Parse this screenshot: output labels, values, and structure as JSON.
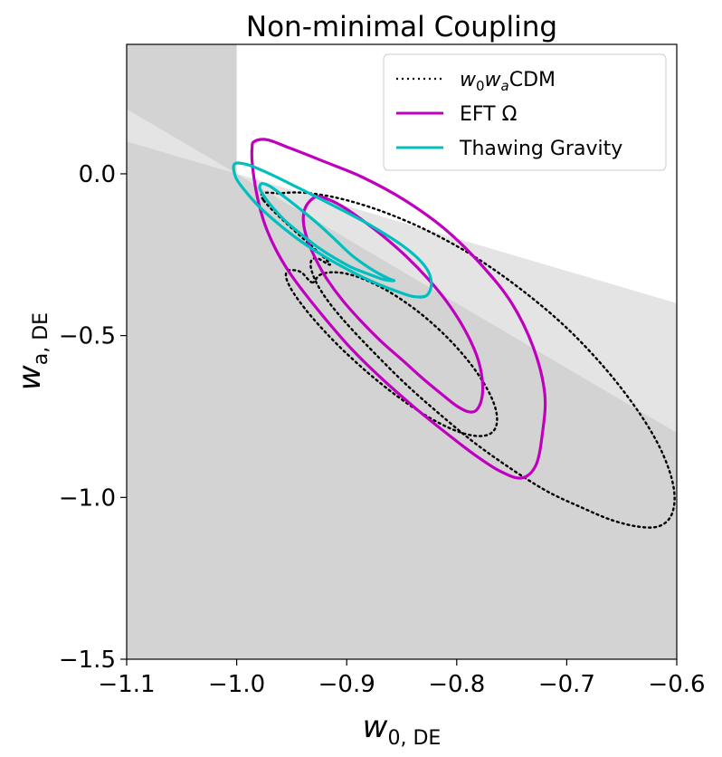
{
  "chart_data": {
    "type": "contour",
    "title": "Non-minimal Coupling",
    "xlabel": {
      "base": "w",
      "sub": "0, DE"
    },
    "ylabel": {
      "base": "w",
      "sub": "a, DE"
    },
    "xlim": [
      -1.1,
      -0.6
    ],
    "ylim": [
      -1.5,
      0.4
    ],
    "xticks": [
      -1.1,
      -1.0,
      -0.9,
      -0.8,
      -0.7,
      -0.6
    ],
    "xtick_labels": [
      "−1.1",
      "−1.0",
      "−0.9",
      "−0.8",
      "−0.7",
      "−0.6"
    ],
    "yticks": [
      0.0,
      -0.5,
      -1.0,
      -1.5
    ],
    "ytick_labels": [
      "0.0",
      "−0.5",
      "−1.0",
      "−1.5"
    ],
    "shaded_regions": [
      {
        "name": "excluded-strip",
        "polygon": [
          [
            -1.1,
            0.4
          ],
          [
            -1.0,
            0.4
          ],
          [
            -1.0,
            -1.5
          ],
          [
            -1.1,
            -1.5
          ]
        ],
        "color": "#d3d3d3"
      },
      {
        "name": "light-wedge",
        "polygon": [
          [
            -1.0,
            0.0
          ],
          [
            -1.1,
            0.2
          ],
          [
            -1.1,
            0.1
          ],
          [
            -1.0,
            0.0
          ],
          [
            -0.6,
            -0.8
          ],
          [
            -0.6,
            -0.4
          ]
        ],
        "color": "#e4e4e4"
      },
      {
        "name": "dark-region",
        "polygon": [
          [
            -1.0,
            0.0
          ],
          [
            -0.6,
            -0.8
          ],
          [
            -0.6,
            -1.5
          ],
          [
            -1.0,
            -1.5
          ]
        ],
        "color": "#d3d3d3"
      }
    ],
    "series": [
      {
        "name": "w0waCDM",
        "color": "#000000",
        "style": "dotted",
        "contours": [
          {
            "level": "68%",
            "points": [
              [
                -0.9315,
                -0.3357
              ],
              [
                -0.9249,
                -0.3136
              ],
              [
                -0.9144,
                -0.3043
              ],
              [
                -0.9006,
                -0.3085
              ],
              [
                -0.8842,
                -0.326
              ],
              [
                -0.866,
                -0.3557
              ],
              [
                -0.847,
                -0.396
              ],
              [
                -0.8282,
                -0.4448
              ],
              [
                -0.8105,
                -0.4994
              ],
              [
                -0.7947,
                -0.5569
              ],
              [
                -0.7816,
                -0.6143
              ],
              [
                -0.7717,
                -0.6686
              ],
              [
                -0.7655,
                -0.717
              ],
              [
                -0.7633,
                -0.757
              ],
              [
                -0.765,
                -0.7868
              ],
              [
                -0.7706,
                -0.8049
              ],
              [
                -0.7799,
                -0.8105
              ],
              [
                -0.7924,
                -0.8034
              ],
              [
                -0.8077,
                -0.784
              ],
              [
                -0.825,
                -0.7531
              ],
              [
                -0.8438,
                -0.7122
              ],
              [
                -0.8633,
                -0.6633
              ],
              [
                -0.8827,
                -0.609
              ],
              [
                -0.9012,
                -0.5517
              ],
              [
                -0.918,
                -0.4943
              ],
              [
                -0.9324,
                -0.4398
              ],
              [
                -0.9437,
                -0.3911
              ],
              [
                -0.9513,
                -0.351
              ],
              [
                -0.955,
                -0.3211
              ],
              [
                -0.9545,
                -0.303
              ],
              [
                -0.9499,
                -0.2974
              ],
              [
                -0.9412,
                -0.3045
              ]
            ]
          },
          {
            "level": "95%",
            "points": [
              [
                -0.976,
                -0.08
              ],
              [
                -0.9587,
                -0.06
              ],
              [
                -0.9336,
                -0.06
              ],
              [
                -0.9019,
                -0.08
              ],
              [
                -0.8647,
                -0.12
              ],
              [
                -0.824,
                -0.18
              ],
              [
                -0.782,
                -0.26
              ],
              [
                -0.7405,
                -0.36
              ],
              [
                -0.702,
                -0.47
              ],
              [
                -0.668,
                -0.59
              ],
              [
                -0.64,
                -0.71
              ],
              [
                -0.6193,
                -0.82
              ],
              [
                -0.6065,
                -0.92
              ],
              [
                -0.602,
                -1.0
              ],
              [
                -0.6057,
                -1.06
              ],
              [
                -0.6171,
                -1.09
              ],
              [
                -0.6353,
                -1.09
              ],
              [
                -0.6591,
                -1.07
              ],
              [
                -0.6873,
                -1.03
              ],
              [
                -0.7184,
                -0.98
              ],
              [
                -0.7512,
                -0.91
              ],
              [
                -0.7843,
                -0.83
              ],
              [
                -0.8164,
                -0.74
              ],
              [
                -0.8463,
                -0.65
              ],
              [
                -0.873,
                -0.56
              ],
              [
                -0.8955,
                -0.48
              ],
              [
                -0.9132,
                -0.41
              ],
              [
                -0.9254,
                -0.35
              ],
              [
                -0.9318,
                -0.3
              ],
              [
                -0.9324,
                -0.27
              ],
              [
                -0.9274,
                -0.26
              ],
              [
                -0.9174,
                -0.27
              ]
            ]
          }
        ]
      },
      {
        "name": "EFT Ω",
        "color": "#bf00bf",
        "style": "solid",
        "contours": [
          {
            "level": "68%",
            "points": [
              [
                -0.927,
                -0.07
              ],
              [
                -0.916,
                -0.08
              ],
              [
                -0.902,
                -0.105
              ],
              [
                -0.885,
                -0.145
              ],
              [
                -0.866,
                -0.195
              ],
              [
                -0.846,
                -0.255
              ],
              [
                -0.826,
                -0.325
              ],
              [
                -0.808,
                -0.4
              ],
              [
                -0.793,
                -0.48
              ],
              [
                -0.782,
                -0.56
              ],
              [
                -0.777,
                -0.63
              ],
              [
                -0.777,
                -0.69
              ],
              [
                -0.782,
                -0.73
              ],
              [
                -0.79,
                -0.735
              ],
              [
                -0.801,
                -0.715
              ],
              [
                -0.814,
                -0.68
              ],
              [
                -0.83,
                -0.635
              ],
              [
                -0.848,
                -0.58
              ],
              [
                -0.868,
                -0.52
              ],
              [
                -0.887,
                -0.455
              ],
              [
                -0.904,
                -0.39
              ],
              [
                -0.918,
                -0.325
              ],
              [
                -0.928,
                -0.265
              ],
              [
                -0.935,
                -0.21
              ],
              [
                -0.939,
                -0.16
              ],
              [
                -0.939,
                -0.12
              ],
              [
                -0.935,
                -0.09
              ]
            ]
          },
          {
            "level": "95%",
            "points": [
              [
                -0.984,
                0.1
              ],
              [
                -0.972,
                0.105
              ],
              [
                -0.952,
                0.08
              ],
              [
                -0.922,
                0.04
              ],
              [
                -0.886,
                -0.01
              ],
              [
                -0.848,
                -0.08
              ],
              [
                -0.811,
                -0.17
              ],
              [
                -0.778,
                -0.28
              ],
              [
                -0.75,
                -0.4
              ],
              [
                -0.73,
                -0.54
              ],
              [
                -0.72,
                -0.68
              ],
              [
                -0.722,
                -0.8
              ],
              [
                -0.728,
                -0.9
              ],
              [
                -0.741,
                -0.94
              ],
              [
                -0.76,
                -0.92
              ],
              [
                -0.783,
                -0.87
              ],
              [
                -0.81,
                -0.8
              ],
              [
                -0.839,
                -0.72
              ],
              [
                -0.869,
                -0.63
              ],
              [
                -0.896,
                -0.54
              ],
              [
                -0.919,
                -0.45
              ],
              [
                -0.938,
                -0.37
              ],
              [
                -0.953,
                -0.3
              ],
              [
                -0.965,
                -0.23
              ],
              [
                -0.974,
                -0.16
              ],
              [
                -0.98,
                -0.09
              ],
              [
                -0.984,
                -0.02
              ],
              [
                -0.986,
                0.04
              ],
              [
                -0.986,
                0.08
              ]
            ]
          }
        ]
      },
      {
        "name": "Thawing Gravity",
        "color": "#00bfbf",
        "style": "solid",
        "contours": [
          {
            "level": "68%",
            "points": [
              [
                -0.977,
                -0.03
              ],
              [
                -0.969,
                -0.04
              ],
              [
                -0.957,
                -0.07
              ],
              [
                -0.942,
                -0.11
              ],
              [
                -0.926,
                -0.155
              ],
              [
                -0.91,
                -0.205
              ],
              [
                -0.896,
                -0.25
              ],
              [
                -0.882,
                -0.285
              ],
              [
                -0.87,
                -0.31
              ],
              [
                -0.861,
                -0.325
              ],
              [
                -0.857,
                -0.33
              ],
              [
                -0.86,
                -0.33
              ],
              [
                -0.868,
                -0.325
              ],
              [
                -0.88,
                -0.31
              ],
              [
                -0.895,
                -0.29
              ],
              [
                -0.911,
                -0.26
              ],
              [
                -0.927,
                -0.225
              ],
              [
                -0.942,
                -0.185
              ],
              [
                -0.956,
                -0.145
              ],
              [
                -0.967,
                -0.105
              ],
              [
                -0.975,
                -0.07
              ],
              [
                -0.979,
                -0.045
              ]
            ]
          },
          {
            "level": "95%",
            "points": [
              [
                -1.002,
                0.03
              ],
              [
                -0.99,
                0.028
              ],
              [
                -0.97,
                0.0
              ],
              [
                -0.943,
                -0.045
              ],
              [
                -0.911,
                -0.1
              ],
              [
                -0.878,
                -0.16
              ],
              [
                -0.848,
                -0.225
              ],
              [
                -0.829,
                -0.285
              ],
              [
                -0.823,
                -0.335
              ],
              [
                -0.827,
                -0.375
              ],
              [
                -0.838,
                -0.38
              ],
              [
                -0.853,
                -0.365
              ],
              [
                -0.872,
                -0.34
              ],
              [
                -0.894,
                -0.305
              ],
              [
                -0.918,
                -0.26
              ],
              [
                -0.941,
                -0.21
              ],
              [
                -0.962,
                -0.155
              ],
              [
                -0.98,
                -0.1
              ],
              [
                -0.993,
                -0.05
              ],
              [
                -1.001,
                -0.01
              ]
            ]
          }
        ]
      }
    ],
    "legend": {
      "position": "top-right",
      "entries": [
        {
          "series": "w0waCDM",
          "label": {
            "w0": "w",
            "w0_sub": "0",
            "wa": "w",
            "wa_sub": "a",
            "rest": "CDM"
          }
        },
        {
          "series": "EFT Ω",
          "label": "EFT Ω"
        },
        {
          "series": "Thawing Gravity",
          "label": "Thawing Gravity"
        }
      ]
    }
  }
}
